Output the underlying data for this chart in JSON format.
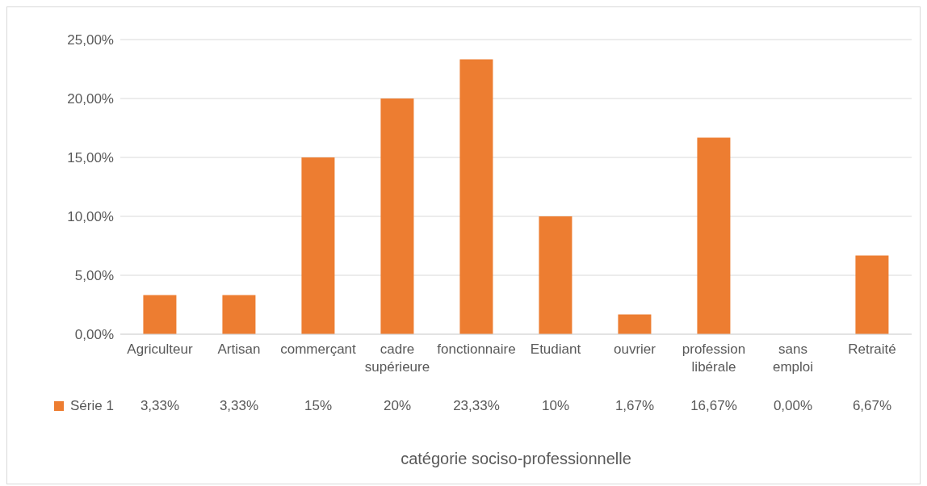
{
  "chart_data": {
    "type": "bar",
    "xlabel": "catégorie sociso-professionnelle",
    "categories": [
      "Agriculteur",
      "Artisan",
      "commerçant",
      "cadre supérieure",
      "fonctionnaire",
      "Etudiant",
      "ouvrier",
      "profession libérale",
      "sans emploi",
      "Retraité"
    ],
    "series": [
      {
        "name": "Série 1",
        "color": "#ed7d31",
        "values": [
          3.33,
          3.33,
          15,
          20,
          23.33,
          10,
          1.67,
          16.67,
          0,
          6.67
        ],
        "value_labels": [
          "3,33%",
          "3,33%",
          "15%",
          "20%",
          "23,33%",
          "10%",
          "1,67%",
          "16,67%",
          "0,00%",
          "6,67%"
        ]
      }
    ],
    "ylim": [
      0,
      25
    ],
    "yticks": [
      {
        "value": 0,
        "label": "0,00%"
      },
      {
        "value": 5,
        "label": "5,00%"
      },
      {
        "value": 10,
        "label": "10,00%"
      },
      {
        "value": 15,
        "label": "15,00%"
      },
      {
        "value": 20,
        "label": "20,00%"
      },
      {
        "value": 25,
        "label": "25,00%"
      }
    ],
    "grid": "y",
    "legend": "bottom"
  }
}
